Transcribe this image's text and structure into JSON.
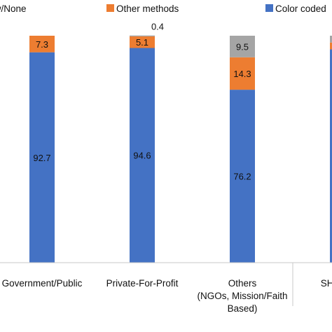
{
  "chart_data": {
    "type": "bar",
    "stacked": true,
    "orientation": "vertical",
    "ylim": [
      0,
      100
    ],
    "legend": "top",
    "categories": [
      [
        "Government/Public"
      ],
      [
        "Private-For-Profit"
      ],
      [
        "Others",
        "(NGOs, Mission/Faith",
        "Based)"
      ],
      [
        "SHC"
      ]
    ],
    "series": [
      {
        "name": "Color coded",
        "color": "#4472C4",
        "values": [
          92.7,
          94.6,
          76.2,
          94.0
        ]
      },
      {
        "name": "Other methods",
        "color": "#ED7D31",
        "values": [
          7.3,
          5.1,
          14.3,
          3.0
        ]
      },
      {
        "name": "Don't know/None",
        "color": "#A5A5A5",
        "values": [
          0.0,
          0.4,
          9.5,
          3.0
        ]
      }
    ],
    "legend_labels": [
      "know/None",
      "Other methods",
      "Color coded"
    ],
    "data_labels": [
      [
        "92.7",
        "7.3",
        ""
      ],
      [
        "94.6",
        "5.1",
        "0.4"
      ],
      [
        "76.2",
        "14.3",
        "9.5"
      ],
      [
        "",
        "",
        ""
      ]
    ]
  }
}
